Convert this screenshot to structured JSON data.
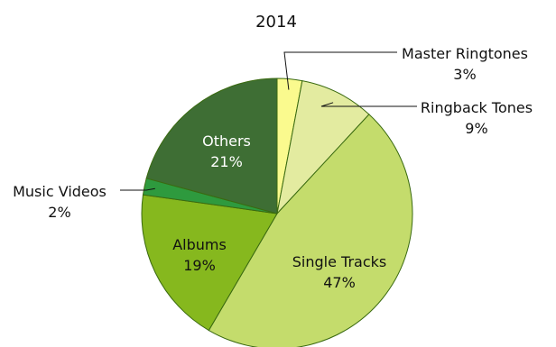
{
  "chart_data": {
    "type": "pie",
    "title": "2014",
    "slices": [
      {
        "label": "Master Ringtones",
        "value": 3,
        "value_label": "3%",
        "color": "#fafa8e"
      },
      {
        "label": "Ringback Tones",
        "value": 9,
        "value_label": "9%",
        "color": "#e3eba0"
      },
      {
        "label": "Single Tracks",
        "value": 47,
        "value_label": "47%",
        "color": "#c4dc6c"
      },
      {
        "label": "Albums",
        "value": 19,
        "value_label": "19%",
        "color": "#86b81e"
      },
      {
        "label": "Music Videos",
        "value": 2,
        "value_label": "2%",
        "color": "#2e9a3e"
      },
      {
        "label": "Others",
        "value": 21,
        "value_label": "21%",
        "color": "#3e6e34"
      }
    ],
    "start_direction": "12 o'clock",
    "direction": "clockwise",
    "slice_border_color": "#3a6a10",
    "legend": "none"
  }
}
